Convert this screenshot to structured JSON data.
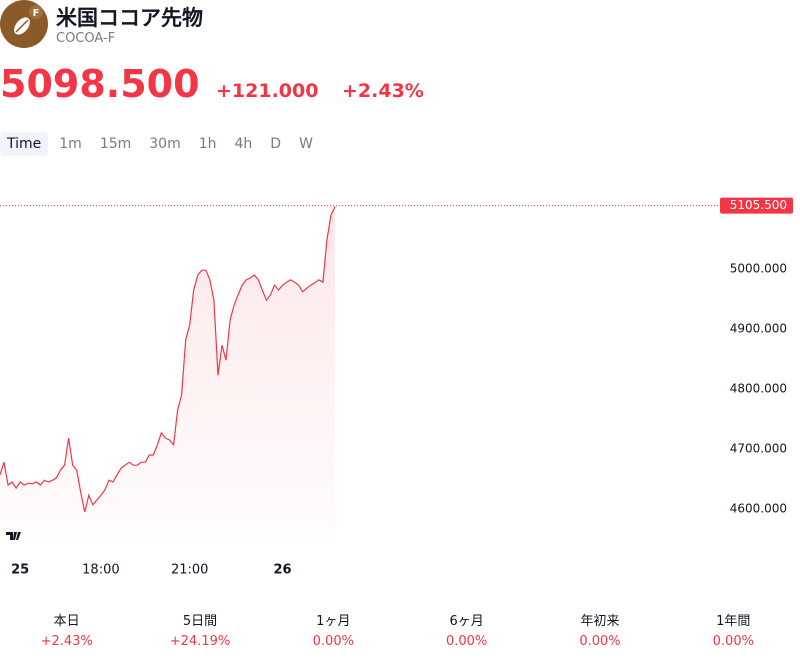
{
  "header": {
    "title": "米国ココア先物",
    "subtitle": "COCOA-F",
    "icon_badge": "F",
    "price": "5098.500",
    "change": "+121.000",
    "change_percent": "+2.43%"
  },
  "tabs": [
    "Time",
    "1m",
    "15m",
    "30m",
    "1h",
    "4h",
    "D",
    "W"
  ],
  "active_tab": "Time",
  "chart_data": {
    "type": "line",
    "categories": [
      null,
      null,
      null,
      null,
      null,
      "25",
      null,
      null,
      null,
      null,
      null,
      null,
      null,
      null,
      null,
      null,
      null,
      null,
      null,
      null,
      null,
      null,
      null,
      null,
      null,
      "18:00",
      null,
      null,
      null,
      null,
      null,
      null,
      null,
      null,
      null,
      null,
      null,
      null,
      null,
      null,
      null,
      null,
      null,
      null,
      null,
      null,
      null,
      "21:00",
      null,
      null,
      null,
      null,
      null,
      null,
      null,
      null,
      null,
      null,
      null,
      null,
      null,
      null,
      null,
      null,
      null,
      null,
      null,
      null,
      null,
      null,
      "26",
      null,
      null,
      null,
      null,
      null,
      null,
      null,
      null,
      null,
      null,
      null,
      null,
      null
    ],
    "series": [
      {
        "name": "COCOA-F",
        "color": "#f23645",
        "values": [
          4657,
          4678,
          4640,
          4645,
          4635,
          4645,
          4640,
          4643,
          4642,
          4645,
          4640,
          4648,
          4645,
          4648,
          4652,
          4665,
          4673,
          4718,
          4673,
          4665,
          4628,
          4595,
          4623,
          4607,
          4615,
          4623,
          4632,
          4648,
          4645,
          4657,
          4668,
          4673,
          4678,
          4673,
          4673,
          4678,
          4678,
          4690,
          4690,
          4707,
          4727,
          4718,
          4715,
          4707,
          4765,
          4790,
          4882,
          4907,
          4965,
          4990,
          4998,
          4998,
          4982,
          4948,
          4823,
          4873,
          4848,
          4915,
          4940,
          4957,
          4973,
          4982,
          4985,
          4990,
          4982,
          4965,
          4948,
          4957,
          4973,
          4965,
          4973,
          4978,
          4982,
          4978,
          4973,
          4962,
          4968,
          4973,
          4977,
          4982,
          4978,
          5048,
          5090,
          5104
        ]
      }
    ],
    "ylim": [
      4540,
      5148.3
    ],
    "yticks": [
      {
        "value": 4600,
        "label": "4600.000"
      },
      {
        "value": 4700,
        "label": "4700.000"
      },
      {
        "value": 4800,
        "label": "4800.000"
      },
      {
        "value": 4900,
        "label": "4900.000"
      },
      {
        "value": 5000,
        "label": "5000.000"
      }
    ],
    "last_price": {
      "value": 5105.5,
      "label": "5105.500"
    },
    "bold_categories": [
      "25",
      "26"
    ]
  },
  "periods": [
    {
      "label": "本日",
      "value": "+2.43%"
    },
    {
      "label": "5日間",
      "value": "+24.19%"
    },
    {
      "label": "1ヶ月",
      "value": "0.00%"
    },
    {
      "label": "6ヶ月",
      "value": "0.00%"
    },
    {
      "label": "年初来",
      "value": "0.00%"
    },
    {
      "label": "1年間",
      "value": "0.00%"
    }
  ]
}
